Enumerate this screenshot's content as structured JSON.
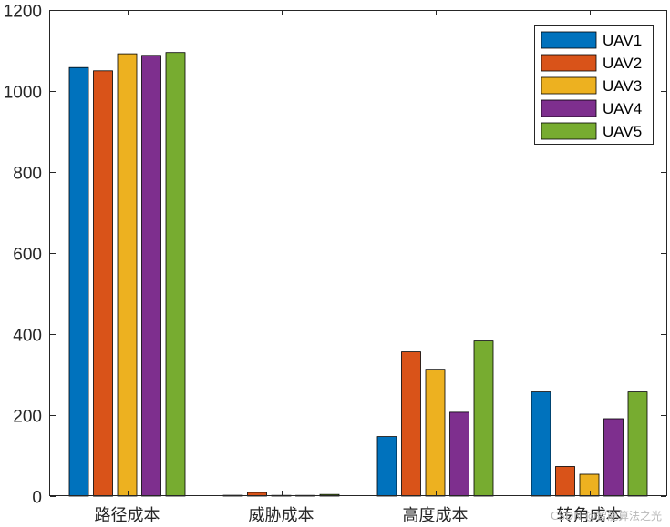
{
  "chart_data": {
    "type": "bar",
    "categories": [
      "路径成本",
      "威胁成本",
      "高度成本",
      "转角成本"
    ],
    "series": [
      {
        "name": "UAV1",
        "color": "#0072BD",
        "values": [
          1058,
          2,
          147,
          257
        ]
      },
      {
        "name": "UAV2",
        "color": "#D95319",
        "values": [
          1050,
          9,
          356,
          73
        ]
      },
      {
        "name": "UAV3",
        "color": "#EDB120",
        "values": [
          1092,
          0,
          313,
          54
        ]
      },
      {
        "name": "UAV4",
        "color": "#7E2F8E",
        "values": [
          1088,
          0,
          207,
          191
        ]
      },
      {
        "name": "UAV5",
        "color": "#77AC30",
        "values": [
          1095,
          4,
          383,
          257
        ]
      }
    ],
    "ylim": [
      0,
      1200
    ],
    "yticks": [
      0,
      200,
      400,
      600,
      800,
      1000,
      1200
    ],
    "grid": false,
    "legend": "top-right"
  },
  "watermark": "CSDN @智能算法之光"
}
